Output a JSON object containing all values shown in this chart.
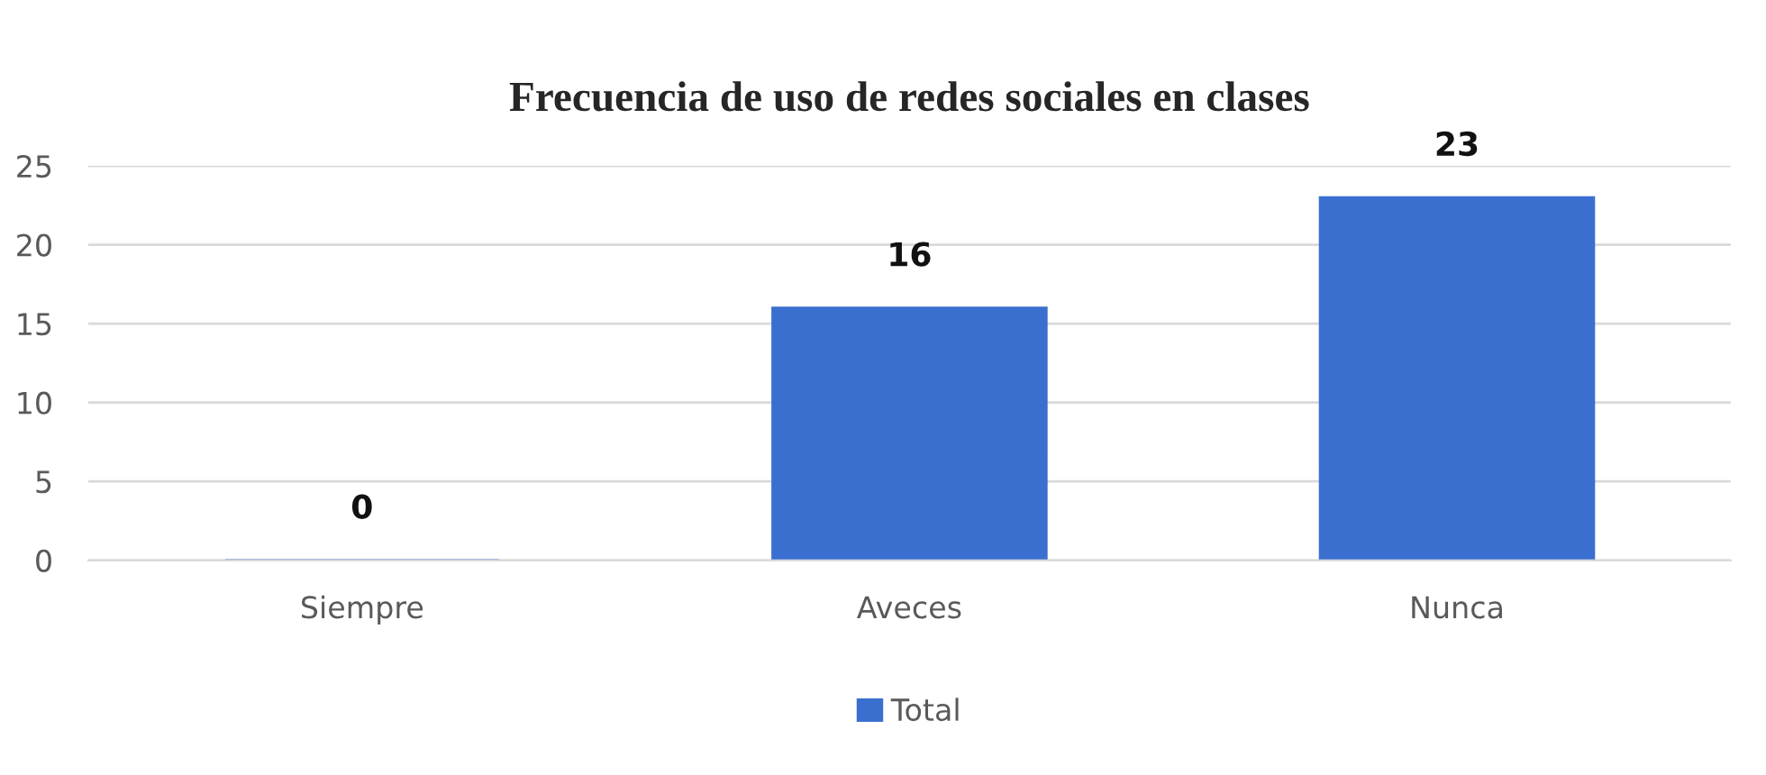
{
  "chart_data": {
    "type": "bar",
    "title": "Frecuencia de uso de redes sociales en clases",
    "categories": [
      "Siempre",
      "Aveces",
      "Nunca"
    ],
    "series": [
      {
        "name": "Total",
        "color": "#3b6fcf",
        "values": [
          0,
          16,
          23
        ]
      }
    ],
    "ylim": [
      0,
      25
    ],
    "yticks": [
      0,
      5,
      10,
      15,
      20,
      25
    ],
    "grid": "y",
    "legend": "bottom",
    "data_labels": true
  }
}
